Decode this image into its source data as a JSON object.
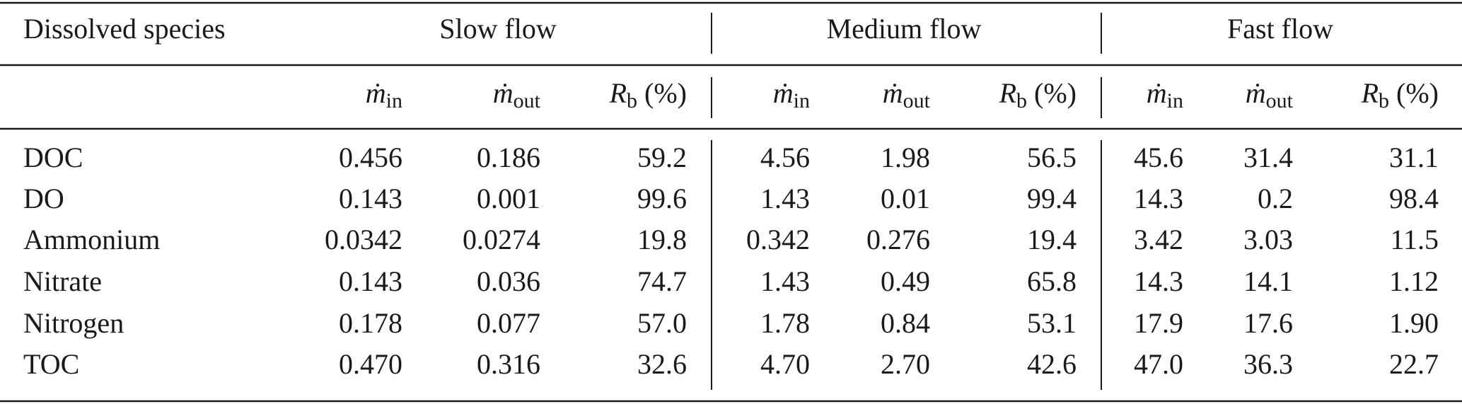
{
  "header": {
    "row_label": "Dissolved species",
    "groups": [
      {
        "name": "Slow flow",
        "columns": [
          {
            "symbol": "ṁ",
            "sub": "in"
          },
          {
            "symbol": "ṁ",
            "sub": "out"
          },
          {
            "symbol": "R",
            "sub": "b",
            "unit": "(%)"
          }
        ]
      },
      {
        "name": "Medium flow",
        "columns": [
          {
            "symbol": "ṁ",
            "sub": "in"
          },
          {
            "symbol": "ṁ",
            "sub": "out"
          },
          {
            "symbol": "R",
            "sub": "b",
            "unit": "(%)"
          }
        ]
      },
      {
        "name": "Fast flow",
        "columns": [
          {
            "symbol": "ṁ",
            "sub": "in"
          },
          {
            "symbol": "ṁ",
            "sub": "out"
          },
          {
            "symbol": "R",
            "sub": "b",
            "unit": "(%)"
          }
        ]
      }
    ]
  },
  "rows": [
    {
      "label": "DOC",
      "cells": [
        "0.456",
        "0.186",
        "59.2",
        "4.56",
        "1.98",
        "56.5",
        "45.6",
        "31.4",
        "31.1"
      ]
    },
    {
      "label": "DO",
      "cells": [
        "0.143",
        "0.001",
        "99.6",
        "1.43",
        "0.01",
        "99.4",
        "14.3",
        "0.2",
        "98.4"
      ]
    },
    {
      "label": "Ammonium",
      "cells": [
        "0.0342",
        "0.0274",
        "19.8",
        "0.342",
        "0.276",
        "19.4",
        "3.42",
        "3.03",
        "11.5"
      ]
    },
    {
      "label": "Nitrate",
      "cells": [
        "0.143",
        "0.036",
        "74.7",
        "1.43",
        "0.49",
        "65.8",
        "14.3",
        "14.1",
        "1.12"
      ]
    },
    {
      "label": "Nitrogen",
      "cells": [
        "0.178",
        "0.077",
        "57.0",
        "1.78",
        "0.84",
        "53.1",
        "17.9",
        "17.6",
        "1.90"
      ]
    },
    {
      "label": "TOC",
      "cells": [
        "0.470",
        "0.316",
        "32.6",
        "4.70",
        "2.70",
        "42.6",
        "47.0",
        "36.3",
        "22.7"
      ]
    }
  ]
}
